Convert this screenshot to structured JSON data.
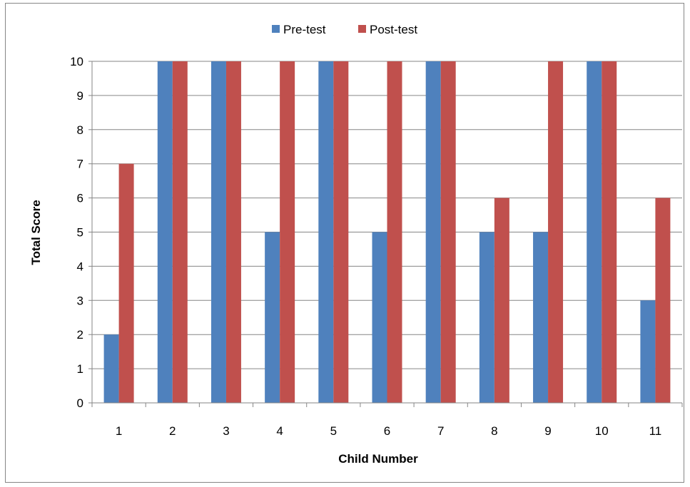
{
  "chart_data": {
    "type": "bar",
    "title": "",
    "xlabel": "Child Number",
    "ylabel": "Total Score",
    "categories": [
      "1",
      "2",
      "3",
      "4",
      "5",
      "6",
      "7",
      "8",
      "9",
      "10",
      "11"
    ],
    "series": [
      {
        "name": "Pre-test",
        "color": "#4f81bd",
        "values": [
          2,
          10,
          10,
          5,
          10,
          5,
          10,
          5,
          5,
          10,
          3
        ]
      },
      {
        "name": "Post-test",
        "color": "#c0504d",
        "values": [
          7,
          10,
          10,
          10,
          10,
          10,
          10,
          6,
          10,
          10,
          6
        ]
      }
    ],
    "ylim": [
      0,
      10
    ],
    "yticks": [
      "0",
      "1",
      "2",
      "3",
      "4",
      "5",
      "6",
      "7",
      "8",
      "9",
      "10"
    ],
    "grid": true,
    "legend_position": "top"
  }
}
